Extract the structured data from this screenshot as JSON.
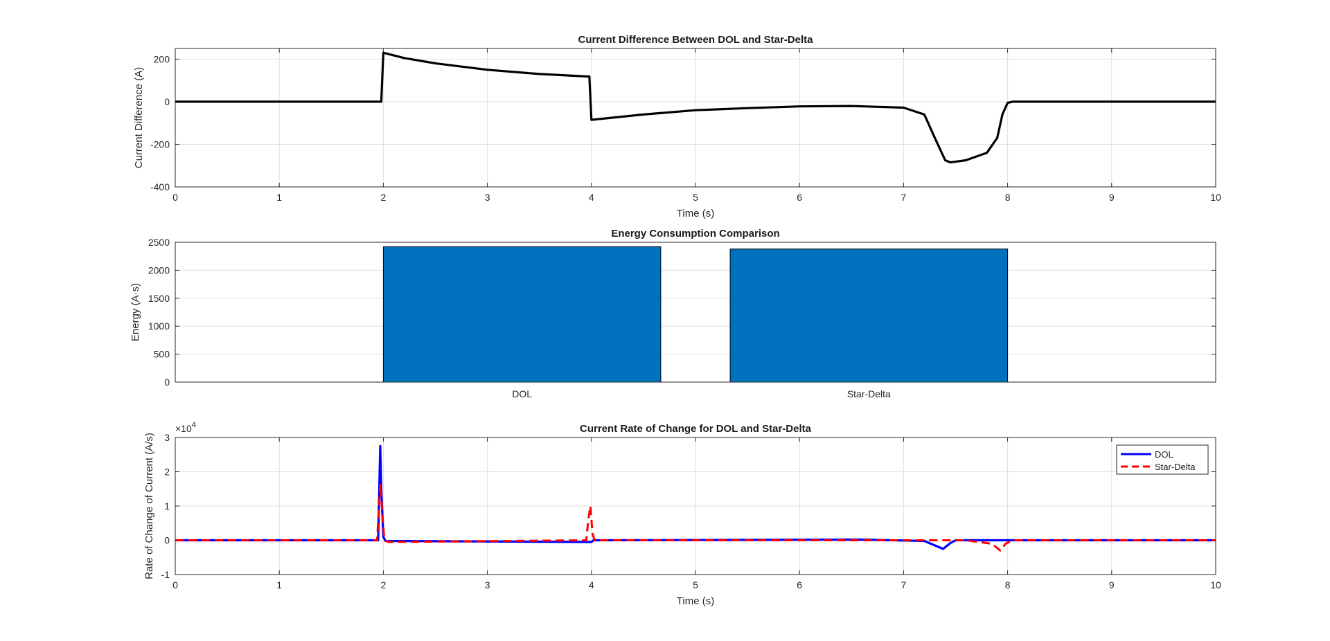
{
  "chart_data": [
    {
      "type": "line",
      "title": "Current Difference Between DOL and Star-Delta",
      "xlabel": "Time (s)",
      "ylabel": "Current Difference (A)",
      "xlim": [
        0,
        10
      ],
      "ylim": [
        -400,
        250
      ],
      "xticks": [
        "0",
        "1",
        "2",
        "3",
        "4",
        "5",
        "6",
        "7",
        "8",
        "9",
        "10"
      ],
      "yticks": [
        "200",
        "0",
        "-200",
        "-400"
      ],
      "ytick_values": [
        200,
        0,
        -200,
        -400
      ],
      "grid": true,
      "series": [
        {
          "color": "#000000",
          "x": [
            0,
            1.98,
            2.0,
            2.2,
            2.5,
            3.0,
            3.5,
            3.98,
            4.0,
            4.5,
            5.0,
            5.5,
            6.0,
            6.5,
            7.0,
            7.2,
            7.3,
            7.4,
            7.45,
            7.6,
            7.8,
            7.9,
            7.95,
            8.0,
            8.05,
            9.0,
            10.0
          ],
          "y": [
            0,
            0,
            230,
            205,
            180,
            150,
            130,
            118,
            -85,
            -60,
            -40,
            -30,
            -22,
            -20,
            -28,
            -60,
            -170,
            -275,
            -285,
            -275,
            -240,
            -170,
            -60,
            -5,
            0,
            0,
            0
          ]
        }
      ]
    },
    {
      "type": "bar",
      "title": "Energy Consumption Comparison",
      "xlabel": "",
      "ylabel": "Energy (A·s)",
      "categories": [
        "DOL",
        "Star-Delta"
      ],
      "values": [
        2420,
        2380
      ],
      "ylim": [
        0,
        2500
      ],
      "yticks": [
        "2500",
        "2000",
        "1500",
        "1000",
        "500",
        "0"
      ],
      "ytick_values": [
        2500,
        2000,
        1500,
        1000,
        500,
        0
      ],
      "grid": true,
      "bar_color": "#0072bd"
    },
    {
      "type": "line",
      "title": "Current Rate of Change for DOL and Star-Delta",
      "xlabel": "Time (s)",
      "ylabel": "Rate of Change of Current (A/s)",
      "xlim": [
        0,
        10
      ],
      "ylim": [
        -1,
        3
      ],
      "exponent_label": "×10",
      "exponent_power": "4",
      "xticks": [
        "0",
        "1",
        "2",
        "3",
        "4",
        "5",
        "6",
        "7",
        "8",
        "9",
        "10"
      ],
      "yticks": [
        "3",
        "2",
        "1",
        "0",
        "-1"
      ],
      "ytick_values": [
        3,
        2,
        1,
        0,
        -1
      ],
      "grid": true,
      "legend": "top-right",
      "series": [
        {
          "name": "DOL",
          "color": "#0000ff",
          "dash": "solid",
          "x": [
            0,
            1.95,
            1.97,
            1.98,
            2.0,
            2.02,
            4.0,
            4.02,
            6.6,
            7.2,
            7.3,
            7.38,
            7.45,
            7.5,
            8.0,
            10.0
          ],
          "y": [
            0,
            0,
            2.75,
            1.5,
            0.1,
            -0.02,
            -0.05,
            0,
            0.02,
            -0.02,
            -0.15,
            -0.25,
            -0.08,
            0,
            0,
            0
          ]
        },
        {
          "name": "Star-Delta",
          "color": "#ff0000",
          "dash": "dashed",
          "x": [
            0,
            1.94,
            1.97,
            1.99,
            2.01,
            2.05,
            3.95,
            3.97,
            3.99,
            4.01,
            4.03,
            7.6,
            7.85,
            7.93,
            7.98,
            8.05,
            10.0
          ],
          "y": [
            0,
            0,
            1.65,
            0.8,
            0.0,
            -0.05,
            0,
            0.6,
            1.0,
            0.2,
            0,
            0,
            -0.1,
            -0.3,
            -0.1,
            0,
            0
          ]
        }
      ]
    }
  ]
}
